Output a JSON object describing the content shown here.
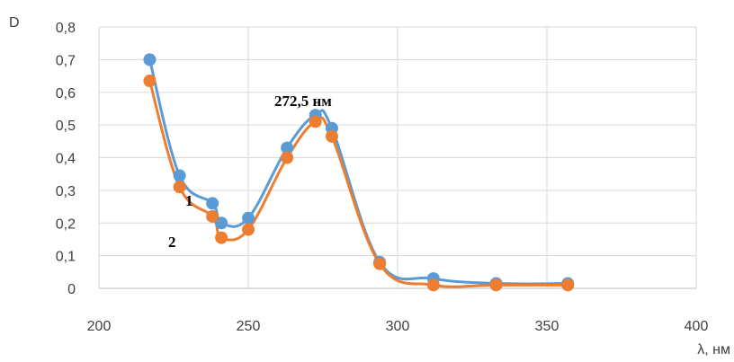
{
  "chart_data": {
    "type": "scatter",
    "ylabel": "D",
    "xlabel": "λ, нм",
    "xlim": [
      200,
      400
    ],
    "ylim": [
      0,
      0.8
    ],
    "x_ticks": [
      "200",
      "250",
      "300",
      "350",
      "400"
    ],
    "y_ticks": [
      "0",
      "0,1",
      "0,2",
      "0,3",
      "0,4",
      "0,5",
      "0,6",
      "0,7",
      "0,8"
    ],
    "grid": true,
    "smooth_lines": true,
    "series": [
      {
        "name": "1",
        "color": "#5B9BD5",
        "x": [
          217,
          227,
          238,
          241,
          250,
          263,
          272.5,
          278,
          294,
          312,
          333,
          357
        ],
        "y": [
          0.7,
          0.345,
          0.26,
          0.2,
          0.215,
          0.43,
          0.53,
          0.49,
          0.08,
          0.03,
          0.015,
          0.015
        ]
      },
      {
        "name": "2",
        "color": "#ED7D31",
        "x": [
          217,
          227,
          238,
          241,
          250,
          263,
          272.5,
          278,
          294,
          312,
          333,
          357
        ],
        "y": [
          0.635,
          0.31,
          0.22,
          0.155,
          0.18,
          0.4,
          0.51,
          0.465,
          0.075,
          0.01,
          0.01,
          0.01
        ]
      }
    ],
    "annotations": [
      "272,5 нм",
      "1",
      "2"
    ]
  }
}
